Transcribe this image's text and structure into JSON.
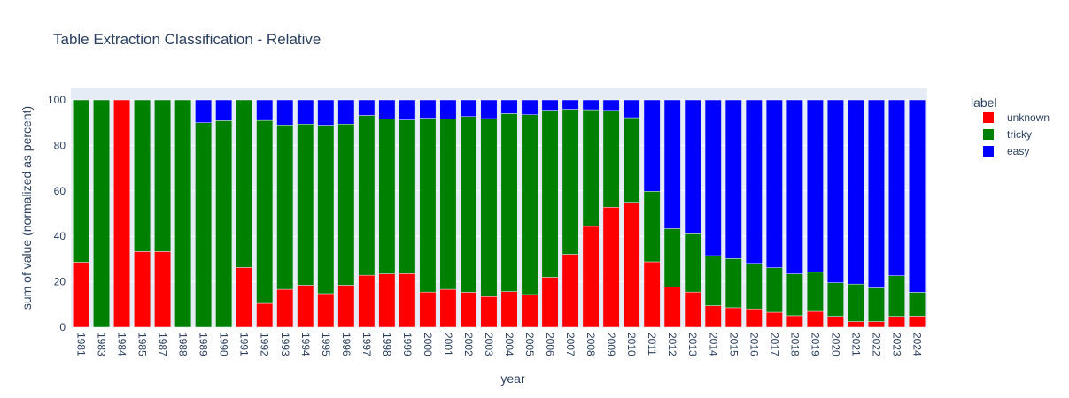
{
  "chart_data": {
    "type": "bar",
    "stacked": true,
    "title": "Table Extraction Classification - Relative",
    "xlabel": "year",
    "ylabel": "sum of value (normalized as percent)",
    "ylim": [
      0,
      100
    ],
    "yticks": [
      0,
      20,
      40,
      60,
      80,
      100
    ],
    "grid": true,
    "legend_title": "label",
    "legend_position": "top-right",
    "plot_background": "#e5ecf6",
    "categories": [
      "1981",
      "1983",
      "1984",
      "1985",
      "1987",
      "1988",
      "1989",
      "1990",
      "1991",
      "1992",
      "1993",
      "1994",
      "1995",
      "1996",
      "1997",
      "1998",
      "1999",
      "2000",
      "2001",
      "2002",
      "2003",
      "2004",
      "2005",
      "2006",
      "2007",
      "2008",
      "2009",
      "2010",
      "2011",
      "2012",
      "2013",
      "2014",
      "2015",
      "2016",
      "2017",
      "2018",
      "2019",
      "2020",
      "2021",
      "2022",
      "2023",
      "2024"
    ],
    "series": [
      {
        "name": "unknown",
        "color": "#ff0000",
        "values": [
          28.6,
          0,
          100,
          33.3,
          33.3,
          0,
          0,
          0,
          26.3,
          10.5,
          16.7,
          18.5,
          14.8,
          18.5,
          22.9,
          23.5,
          23.6,
          15.5,
          16.7,
          15.4,
          13.5,
          15.7,
          14.4,
          22.0,
          32.1,
          44.4,
          52.8,
          55.0,
          28.8,
          17.6,
          15.5,
          9.5,
          8.6,
          8.1,
          6.6,
          5.1,
          7.0,
          4.8,
          2.5,
          2.5,
          4.8,
          4.9
        ]
      },
      {
        "name": "tricky",
        "color": "#008000",
        "values": [
          71.4,
          100,
          0,
          66.7,
          66.7,
          100,
          90.0,
          90.9,
          73.7,
          80.5,
          72.3,
          70.9,
          74.1,
          70.9,
          70.3,
          68.2,
          67.6,
          76.5,
          75.0,
          77.3,
          78.3,
          78.3,
          79.1,
          73.5,
          63.8,
          51.3,
          42.6,
          37.2,
          31.0,
          25.8,
          25.6,
          22.0,
          21.6,
          20.0,
          19.6,
          18.4,
          17.2,
          14.8,
          16.5,
          14.8,
          17.9,
          10.5
        ]
      },
      {
        "name": "easy",
        "color": "#0000ff",
        "values": [
          0,
          0,
          0,
          0,
          0,
          0,
          10.0,
          9.1,
          0,
          9.0,
          11.0,
          10.6,
          11.1,
          10.6,
          6.8,
          8.3,
          8.8,
          8.0,
          8.3,
          7.3,
          8.2,
          6.0,
          6.5,
          4.5,
          4.1,
          4.3,
          4.6,
          7.8,
          40.2,
          56.6,
          58.9,
          68.5,
          69.8,
          71.9,
          73.8,
          76.5,
          75.8,
          80.4,
          81.0,
          82.7,
          77.3,
          84.6
        ]
      }
    ]
  }
}
